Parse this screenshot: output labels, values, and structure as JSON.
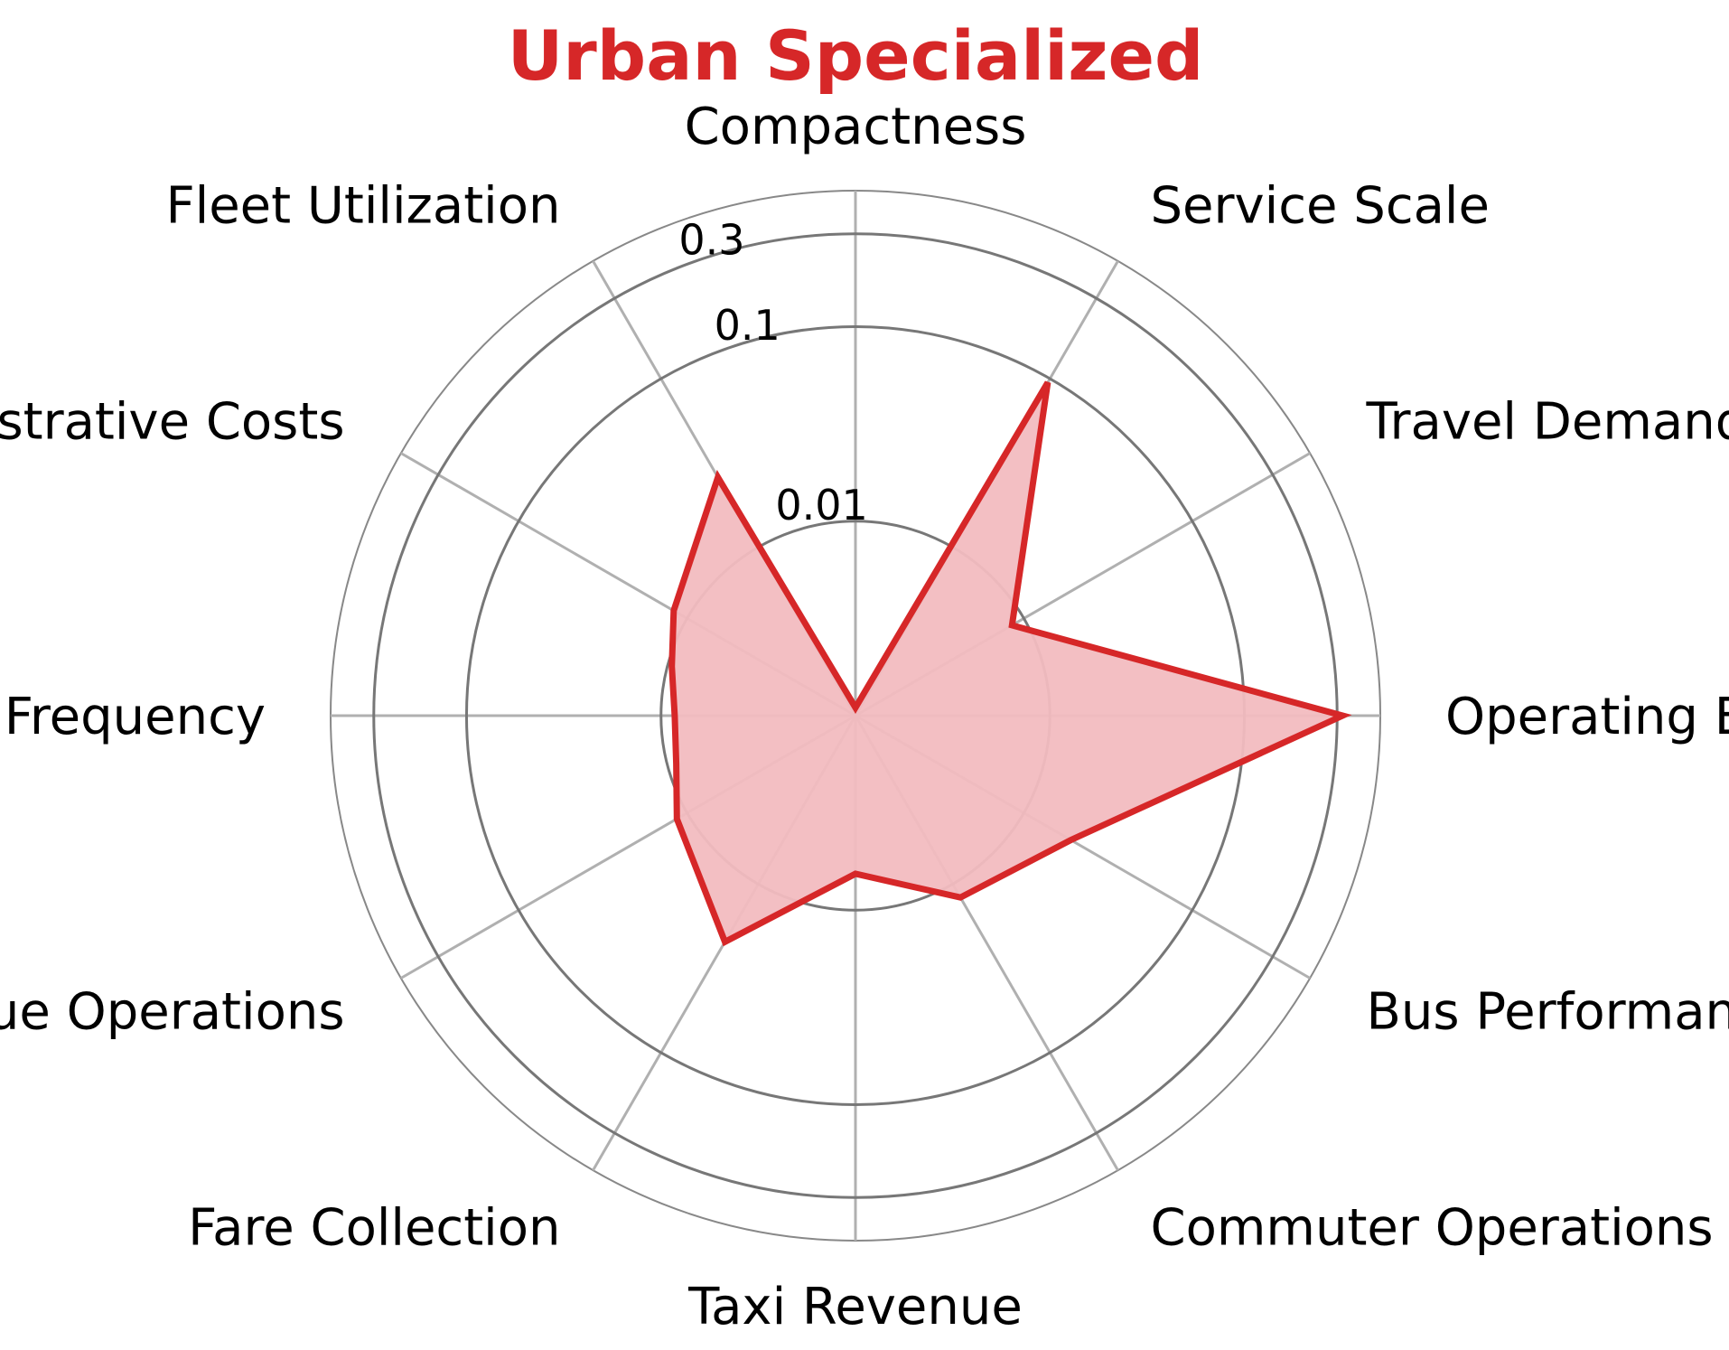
{
  "chart_data": {
    "type": "radar",
    "title": "Urban Specialized",
    "title_color": "#d62728",
    "series_color": "#d62728",
    "fill_color": "#f2bcc0",
    "radial_scale": "log",
    "radial_ticks": [
      {
        "value": 0.01,
        "label": "0.01"
      },
      {
        "value": 0.1,
        "label": "0.1"
      },
      {
        "value": 0.3,
        "label": "0.3"
      }
    ],
    "categories": [
      "Compactness",
      "Service Scale",
      "Travel Demand",
      "Operating Expenses",
      "Bus Performance",
      "Commuter Operations",
      "Taxi Revenue",
      "Fare Collection",
      "Revenue Operations",
      "Service Frequency",
      "Administrative Costs",
      "Fleet Utilization"
    ],
    "grid": true,
    "series": [
      {
        "points": [
          {
            "angle_deg": 0,
            "value": 0.0011
          },
          {
            "angle_deg": 30,
            "value": 0.095
          },
          {
            "angle_deg": 60,
            "value": 0.0085
          },
          {
            "angle_deg": 90,
            "value": 0.32
          },
          {
            "angle_deg": 120,
            "value": 0.019
          },
          {
            "angle_deg": 150,
            "value": 0.012
          },
          {
            "angle_deg": 180,
            "value": 0.0065
          },
          {
            "angle_deg": 210,
            "value": 0.022
          },
          {
            "angle_deg": 240,
            "value": 0.0115
          },
          {
            "angle_deg": 255,
            "value": 0.009
          },
          {
            "angle_deg": 270,
            "value": 0.0085
          },
          {
            "angle_deg": 285,
            "value": 0.0095
          },
          {
            "angle_deg": 300,
            "value": 0.012
          },
          {
            "angle_deg": 330,
            "value": 0.026
          }
        ]
      }
    ]
  }
}
